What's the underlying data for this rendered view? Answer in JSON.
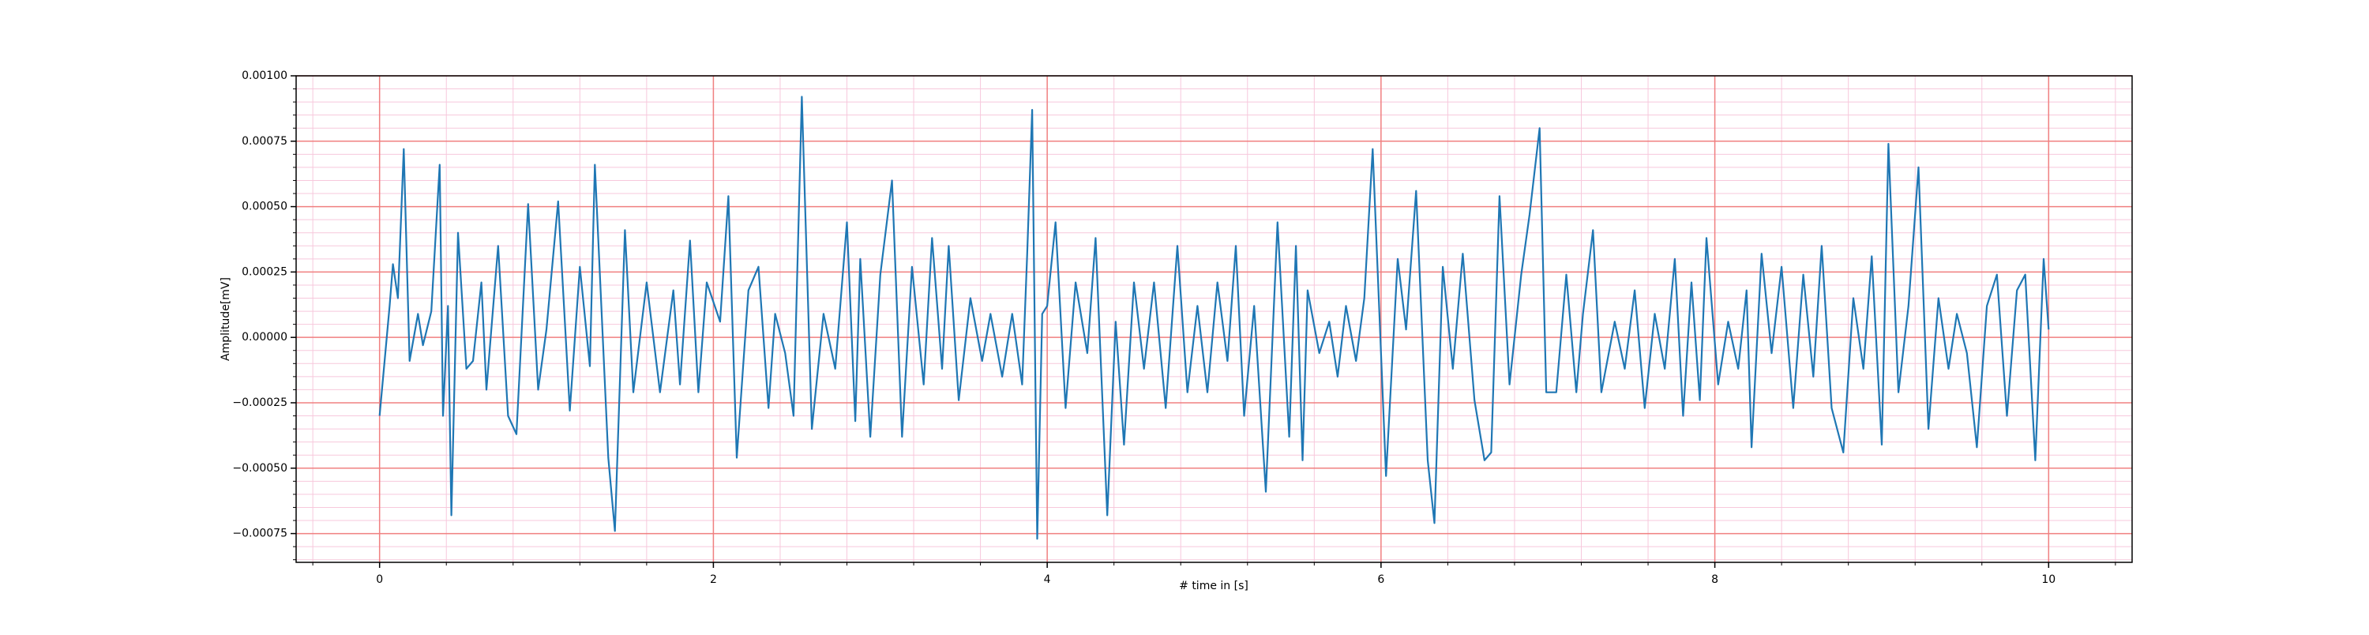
{
  "chart_data": {
    "type": "line",
    "xlabel": "# time in [s]",
    "ylabel": "Amplitude[mV]",
    "color": "#1f77b4",
    "grid": true,
    "minor_grid": true,
    "grid_color": "#f08080",
    "minor_grid_color": "#f7c8dc",
    "xlim": [
      -0.5,
      10.5
    ],
    "xticks": [
      0,
      2,
      4,
      6,
      8,
      10
    ],
    "ylim": [
      -0.00086,
      0.001
    ],
    "yticks": [
      {
        "value": -0.00075,
        "label": "−0.00075"
      },
      {
        "value": -0.0005,
        "label": "−0.00050"
      },
      {
        "value": -0.00025,
        "label": "−0.00025"
      },
      {
        "value": 0,
        "label": "0.00000"
      },
      {
        "value": 0.00025,
        "label": "0.00025"
      },
      {
        "value": 0.0005,
        "label": "0.00050"
      },
      {
        "value": 0.00075,
        "label": "0.00075"
      },
      {
        "value": 0.001,
        "label": "0.00100"
      }
    ],
    "x": [
      0,
      0.06,
      0.08,
      0.11,
      0.145,
      0.18,
      0.23,
      0.26,
      0.31,
      0.36,
      0.38,
      0.41,
      0.43,
      0.47,
      0.52,
      0.56,
      0.61,
      0.64,
      0.71,
      0.77,
      0.82,
      0.89,
      0.95,
      1.0,
      1.07,
      1.14,
      1.2,
      1.26,
      1.29,
      1.37,
      1.41,
      1.47,
      1.52,
      1.6,
      1.68,
      1.76,
      1.8,
      1.86,
      1.91,
      1.96,
      2.04,
      2.09,
      2.14,
      2.21,
      2.27,
      2.33,
      2.37,
      2.43,
      2.48,
      2.53,
      2.59,
      2.66,
      2.73,
      2.8,
      2.85,
      2.88,
      2.94,
      3.0,
      3.07,
      3.13,
      3.19,
      3.26,
      3.31,
      3.37,
      3.41,
      3.47,
      3.54,
      3.61,
      3.66,
      3.73,
      3.79,
      3.85,
      3.88,
      3.91,
      3.94,
      3.97,
      4.0,
      4.05,
      4.11,
      4.17,
      4.24,
      4.29,
      4.36,
      4.41,
      4.46,
      4.52,
      4.58,
      4.64,
      4.71,
      4.78,
      4.84,
      4.9,
      4.96,
      5.02,
      5.08,
      5.13,
      5.18,
      5.24,
      5.31,
      5.38,
      5.45,
      5.49,
      5.53,
      5.56,
      5.63,
      5.69,
      5.74,
      5.79,
      5.85,
      5.9,
      5.95,
      6.03,
      6.1,
      6.15,
      6.21,
      6.28,
      6.32,
      6.37,
      6.43,
      6.49,
      6.56,
      6.62,
      6.66,
      6.71,
      6.77,
      6.84,
      6.89,
      6.95,
      6.99,
      7.05,
      7.11,
      7.17,
      7.21,
      7.27,
      7.32,
      7.4,
      7.46,
      7.52,
      7.58,
      7.64,
      7.7,
      7.76,
      7.81,
      7.86,
      7.91,
      7.95,
      8.02,
      8.08,
      8.14,
      8.19,
      8.22,
      8.28,
      8.34,
      8.4,
      8.47,
      8.53,
      8.59,
      8.64,
      8.7,
      8.77,
      8.83,
      8.89,
      8.94,
      9.0,
      9.04,
      9.1,
      9.16,
      9.22,
      9.28,
      9.34,
      9.4,
      9.45,
      9.51,
      9.57,
      9.63,
      9.69,
      9.75,
      9.81,
      9.86,
      9.92,
      9.97,
      10.0
    ],
    "values": [
      -0.0003,
      0.00012,
      0.00028,
      0.00015,
      0.00072,
      -9e-05,
      9e-05,
      -3e-05,
      0.0001,
      0.00066,
      -0.0003,
      0.00012,
      -0.00068,
      0.0004,
      -0.00012,
      -9e-05,
      0.00021,
      -0.0002,
      0.00035,
      -0.0003,
      -0.00037,
      0.00051,
      -0.0002,
      3e-05,
      0.00052,
      -0.00028,
      0.00027,
      -0.00011,
      0.00066,
      -0.00046,
      -0.00074,
      0.00041,
      -0.00021,
      0.00021,
      -0.00021,
      0.00018,
      -0.00018,
      0.00037,
      -0.00021,
      0.00021,
      6e-05,
      0.00054,
      -0.00046,
      0.00018,
      0.00027,
      -0.00027,
      9e-05,
      -6e-05,
      -0.0003,
      0.00092,
      -0.00035,
      9e-05,
      -0.00012,
      0.00044,
      -0.00032,
      0.0003,
      -0.00038,
      0.00024,
      0.0006,
      -0.00038,
      0.00027,
      -0.00018,
      0.00038,
      -0.00012,
      0.00035,
      -0.00024,
      0.00015,
      -9e-05,
      9e-05,
      -0.00015,
      9e-05,
      -0.00018,
      0.00032,
      0.00087,
      -0.00077,
      9e-05,
      0.00012,
      0.00044,
      -0.00027,
      0.00021,
      -6e-05,
      0.00038,
      -0.00068,
      6e-05,
      -0.00041,
      0.00021,
      -0.00012,
      0.00021,
      -0.00027,
      0.00035,
      -0.00021,
      0.00012,
      -0.00021,
      0.00021,
      -9e-05,
      0.00035,
      -0.0003,
      0.00012,
      -0.00059,
      0.00044,
      -0.00038,
      0.00035,
      -0.00047,
      0.00018,
      -6e-05,
      6e-05,
      -0.00015,
      0.00012,
      -9e-05,
      0.00015,
      0.00072,
      -0.00053,
      0.0003,
      3e-05,
      0.00056,
      -0.00047,
      -0.00071,
      0.00027,
      -0.00012,
      0.00032,
      -0.00024,
      -0.00047,
      -0.00044,
      0.00054,
      -0.00018,
      0.00024,
      0.00047,
      0.0008,
      -0.00021,
      -0.00021,
      0.00024,
      -0.00021,
      9e-05,
      0.00041,
      -0.00021,
      6e-05,
      -0.00012,
      0.00018,
      -0.00027,
      9e-05,
      -0.00012,
      0.0003,
      -0.0003,
      0.00021,
      -0.00024,
      0.00038,
      -0.00018,
      6e-05,
      -0.00012,
      0.00018,
      -0.00042,
      0.00032,
      -6e-05,
      0.00027,
      -0.00027,
      0.00024,
      -0.00015,
      0.00035,
      -0.00027,
      -0.00044,
      0.00015,
      -0.00012,
      0.00031,
      -0.00041,
      0.00074,
      -0.00021,
      0.00012,
      0.00065,
      -0.00035,
      0.00015,
      -0.00012,
      9e-05,
      -6e-05,
      -0.00042,
      0.00012,
      0.00024,
      -0.0003,
      0.00018,
      0.00024,
      -0.00047,
      0.0003,
      3e-05
    ]
  }
}
